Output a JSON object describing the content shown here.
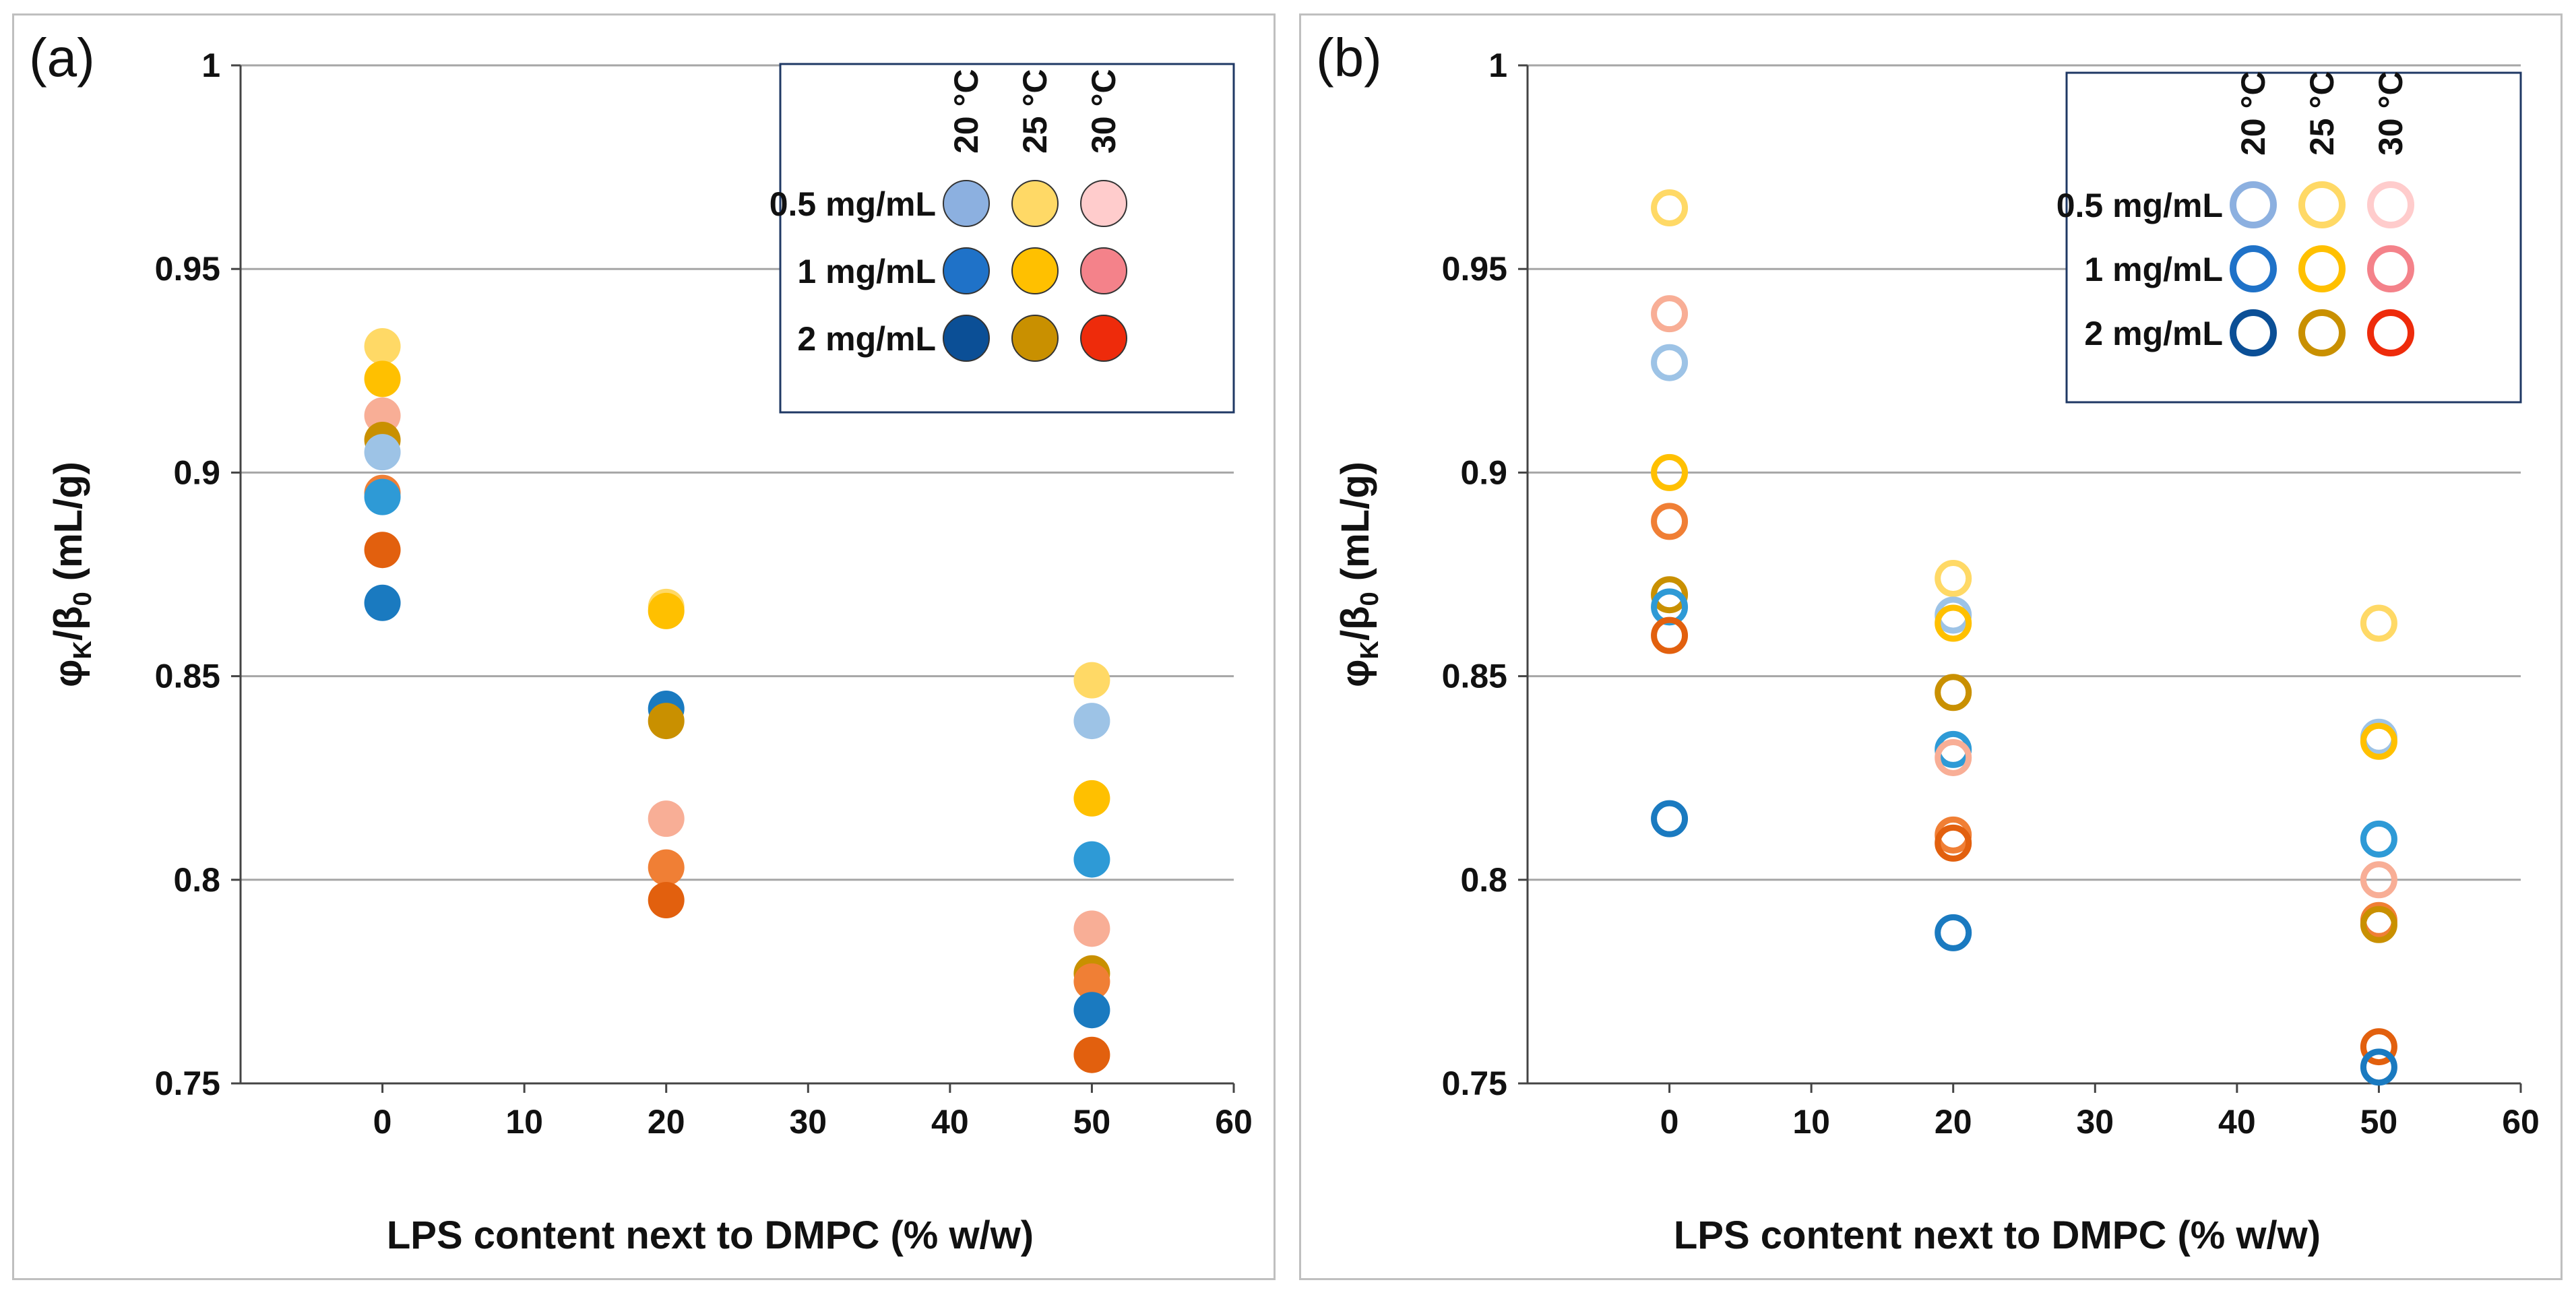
{
  "chart_data": [
    {
      "type": "scatter",
      "panel_label": "(a)",
      "marker": "filled",
      "xlabel": "LPS content next to DMPC (% w/w)",
      "ylabel_main": "φ",
      "ylabel_sub1": "K",
      "ylabel_mid": "/β",
      "ylabel_sub2": "0",
      "ylabel_unit": " (mL/g)",
      "xlim": [
        -10,
        60
      ],
      "ylim": [
        0.75,
        1
      ],
      "x_ticks": [
        "0",
        "10",
        "20",
        "30",
        "40",
        "50",
        "60"
      ],
      "y_ticks": [
        "0.75",
        "0.8",
        "0.85",
        "0.9",
        "0.95",
        "1"
      ],
      "legend": {
        "columns": [
          "20 °C",
          "25 °C",
          "30 °C"
        ],
        "rows": [
          "0.5 mg/mL",
          "1 mg/mL",
          "2 mg/mL"
        ],
        "colors": [
          [
            "#8cb0e0",
            "#ffd966",
            "#ffcccc"
          ],
          [
            "#1f72c8",
            "#ffc000",
            "#f4828a"
          ],
          [
            "#0b4f96",
            "#c99000",
            "#ee2b0b"
          ]
        ]
      },
      "points": [
        {
          "x": 0,
          "y": 0.931,
          "color": "#ffd966"
        },
        {
          "x": 0,
          "y": 0.923,
          "color": "#ffc000"
        },
        {
          "x": 0,
          "y": 0.914,
          "color": "#f8ae96"
        },
        {
          "x": 0,
          "y": 0.908,
          "color": "#c99000"
        },
        {
          "x": 0,
          "y": 0.905,
          "color": "#9dc3e6"
        },
        {
          "x": 0,
          "y": 0.895,
          "color": "#f07f35"
        },
        {
          "x": 0,
          "y": 0.894,
          "color": "#2e9ad6"
        },
        {
          "x": 0,
          "y": 0.881,
          "color": "#e2600e"
        },
        {
          "x": 0,
          "y": 0.868,
          "color": "#1a7ac0"
        },
        {
          "x": 20,
          "y": 0.867,
          "color": "#ffd966"
        },
        {
          "x": 20,
          "y": 0.866,
          "color": "#ffc000"
        },
        {
          "x": 20,
          "y": 0.842,
          "color": "#1a7ac0"
        },
        {
          "x": 20,
          "y": 0.839,
          "color": "#c99000"
        },
        {
          "x": 20,
          "y": 0.815,
          "color": "#f8ae96"
        },
        {
          "x": 20,
          "y": 0.803,
          "color": "#f07f35"
        },
        {
          "x": 20,
          "y": 0.795,
          "color": "#e2600e"
        },
        {
          "x": 50,
          "y": 0.849,
          "color": "#ffd966"
        },
        {
          "x": 50,
          "y": 0.839,
          "color": "#9dc3e6"
        },
        {
          "x": 50,
          "y": 0.82,
          "color": "#ffc000"
        },
        {
          "x": 50,
          "y": 0.805,
          "color": "#2e9ad6"
        },
        {
          "x": 50,
          "y": 0.788,
          "color": "#f8ae96"
        },
        {
          "x": 50,
          "y": 0.777,
          "color": "#c99000"
        },
        {
          "x": 50,
          "y": 0.775,
          "color": "#f07f35"
        },
        {
          "x": 50,
          "y": 0.768,
          "color": "#1a7ac0"
        },
        {
          "x": 50,
          "y": 0.757,
          "color": "#e2600e"
        }
      ]
    },
    {
      "type": "scatter",
      "panel_label": "(b)",
      "marker": "open",
      "xlabel": "LPS content next to DMPC (% w/w)",
      "ylabel_main": "φ",
      "ylabel_sub1": "K",
      "ylabel_mid": "/β",
      "ylabel_sub2": "0",
      "ylabel_unit": " (mL/g)",
      "xlim": [
        -10,
        60
      ],
      "ylim": [
        0.75,
        1
      ],
      "x_ticks": [
        "0",
        "10",
        "20",
        "30",
        "40",
        "50",
        "60"
      ],
      "y_ticks": [
        "0.75",
        "0.8",
        "0.85",
        "0.9",
        "0.95",
        "1"
      ],
      "legend": {
        "columns": [
          "20 °C",
          "25 °C",
          "30 °C"
        ],
        "rows": [
          "0.5 mg/mL",
          "1 mg/mL",
          "2 mg/mL"
        ],
        "colors": [
          [
            "#8cb0e0",
            "#ffd966",
            "#ffcccc"
          ],
          [
            "#1f72c8",
            "#ffc000",
            "#f4828a"
          ],
          [
            "#0b4f96",
            "#c99000",
            "#ee2b0b"
          ]
        ]
      },
      "points": [
        {
          "x": 0,
          "y": 0.965,
          "color": "#ffd966"
        },
        {
          "x": 0,
          "y": 0.939,
          "color": "#f8ae96"
        },
        {
          "x": 0,
          "y": 0.927,
          "color": "#9dc3e6"
        },
        {
          "x": 0,
          "y": 0.9,
          "color": "#ffc000"
        },
        {
          "x": 0,
          "y": 0.888,
          "color": "#f07f35"
        },
        {
          "x": 0,
          "y": 0.87,
          "color": "#c99000"
        },
        {
          "x": 0,
          "y": 0.867,
          "color": "#2e9ad6"
        },
        {
          "x": 0,
          "y": 0.86,
          "color": "#e2600e"
        },
        {
          "x": 0,
          "y": 0.815,
          "color": "#1a7ac0"
        },
        {
          "x": 20,
          "y": 0.874,
          "color": "#ffd966"
        },
        {
          "x": 20,
          "y": 0.865,
          "color": "#9dc3e6"
        },
        {
          "x": 20,
          "y": 0.863,
          "color": "#ffc000"
        },
        {
          "x": 20,
          "y": 0.846,
          "color": "#c99000"
        },
        {
          "x": 20,
          "y": 0.832,
          "color": "#2e9ad6"
        },
        {
          "x": 20,
          "y": 0.83,
          "color": "#f8ae96"
        },
        {
          "x": 20,
          "y": 0.811,
          "color": "#f07f35"
        },
        {
          "x": 20,
          "y": 0.809,
          "color": "#e2600e"
        },
        {
          "x": 20,
          "y": 0.787,
          "color": "#1a7ac0"
        },
        {
          "x": 50,
          "y": 0.863,
          "color": "#ffd966"
        },
        {
          "x": 50,
          "y": 0.835,
          "color": "#9dc3e6"
        },
        {
          "x": 50,
          "y": 0.834,
          "color": "#ffc000"
        },
        {
          "x": 50,
          "y": 0.81,
          "color": "#2e9ad6"
        },
        {
          "x": 50,
          "y": 0.8,
          "color": "#f8ae96"
        },
        {
          "x": 50,
          "y": 0.79,
          "color": "#f07f35"
        },
        {
          "x": 50,
          "y": 0.789,
          "color": "#c99000"
        },
        {
          "x": 50,
          "y": 0.759,
          "color": "#e2600e"
        },
        {
          "x": 50,
          "y": 0.754,
          "color": "#1a7ac0"
        }
      ]
    }
  ]
}
